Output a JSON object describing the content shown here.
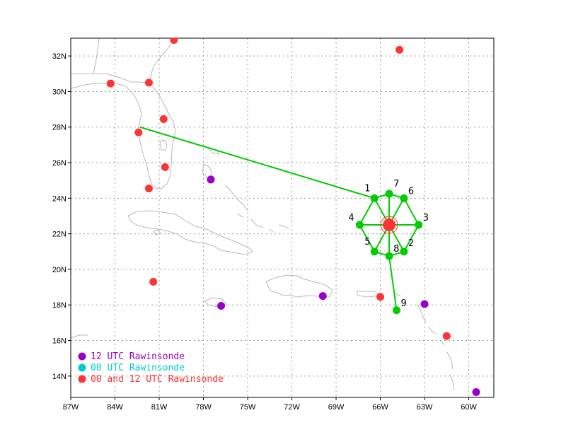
{
  "map": {
    "lon_range": [
      -87,
      -58.3
    ],
    "lat_range": [
      12.8,
      33
    ],
    "x_ticks": [
      {
        "lon": -87,
        "label": "87W"
      },
      {
        "lon": -84,
        "label": "84W"
      },
      {
        "lon": -81,
        "label": "81W"
      },
      {
        "lon": -78,
        "label": "78W"
      },
      {
        "lon": -75,
        "label": "75W"
      },
      {
        "lon": -72,
        "label": "72W"
      },
      {
        "lon": -69,
        "label": "69W"
      },
      {
        "lon": -66,
        "label": "66W"
      },
      {
        "lon": -63,
        "label": "63W"
      },
      {
        "lon": -60,
        "label": "60W"
      }
    ],
    "y_ticks": [
      {
        "lat": 14,
        "label": "14N"
      },
      {
        "lat": 16,
        "label": "16N"
      },
      {
        "lat": 18,
        "label": "18N"
      },
      {
        "lat": 20,
        "label": "20N"
      },
      {
        "lat": 22,
        "label": "22N"
      },
      {
        "lat": 24,
        "label": "24N"
      },
      {
        "lat": 26,
        "label": "26N"
      },
      {
        "lat": 28,
        "label": "28N"
      },
      {
        "lat": 30,
        "label": "30N"
      },
      {
        "lat": 32,
        "label": "32N"
      }
    ],
    "grid": true,
    "colors": {
      "coast": "#b8b8b8",
      "grid": "#9a9a9a",
      "pattern": "#00cc00",
      "center": "#ff3333",
      "red_station": "#ff3333",
      "purple_station": "#9900cc",
      "cyan_station": "#00cccc"
    },
    "center": {
      "lon": -65.4,
      "lat": 22.5
    },
    "pattern_points": [
      {
        "id": "1",
        "lon": -66.4,
        "lat": 24.0
      },
      {
        "id": "2",
        "lon": -64.4,
        "lat": 21.0
      },
      {
        "id": "3",
        "lon": -63.4,
        "lat": 22.5
      },
      {
        "id": "4",
        "lon": -67.4,
        "lat": 22.5
      },
      {
        "id": "5",
        "lon": -66.4,
        "lat": 21.0
      },
      {
        "id": "6",
        "lon": -64.4,
        "lat": 24.0
      },
      {
        "id": "7",
        "lon": -65.4,
        "lat": 24.25
      },
      {
        "id": "8",
        "lon": -65.4,
        "lat": 20.75
      },
      {
        "id": "9",
        "lon": -64.9,
        "lat": 17.7
      }
    ],
    "flight_start": {
      "lon": -82.3,
      "lat": 28.0
    },
    "red_stations": [
      {
        "lon": -80.0,
        "lat": 32.9
      },
      {
        "lon": -84.3,
        "lat": 30.45
      },
      {
        "lon": -81.7,
        "lat": 30.5
      },
      {
        "lon": -80.7,
        "lat": 28.45
      },
      {
        "lon": -82.4,
        "lat": 27.7
      },
      {
        "lon": -80.6,
        "lat": 25.75
      },
      {
        "lon": -81.7,
        "lat": 24.55
      },
      {
        "lon": -81.4,
        "lat": 19.3
      },
      {
        "lon": -64.7,
        "lat": 32.35
      },
      {
        "lon": -66.0,
        "lat": 18.45
      },
      {
        "lon": -61.5,
        "lat": 16.25
      }
    ],
    "purple_stations": [
      {
        "lon": -77.5,
        "lat": 25.05
      },
      {
        "lon": -76.8,
        "lat": 17.95
      },
      {
        "lon": -69.9,
        "lat": 18.5
      },
      {
        "lon": -63.0,
        "lat": 18.05
      },
      {
        "lon": -59.5,
        "lat": 13.1
      }
    ]
  },
  "legend": [
    {
      "label": "12 UTC Rawinsonde",
      "color": "#9900cc"
    },
    {
      "label": "00 UTC Rawinsonde",
      "color": "#00cccc"
    },
    {
      "label": "00 and 12 UTC Rawinsonde",
      "color": "#ff3333"
    }
  ]
}
